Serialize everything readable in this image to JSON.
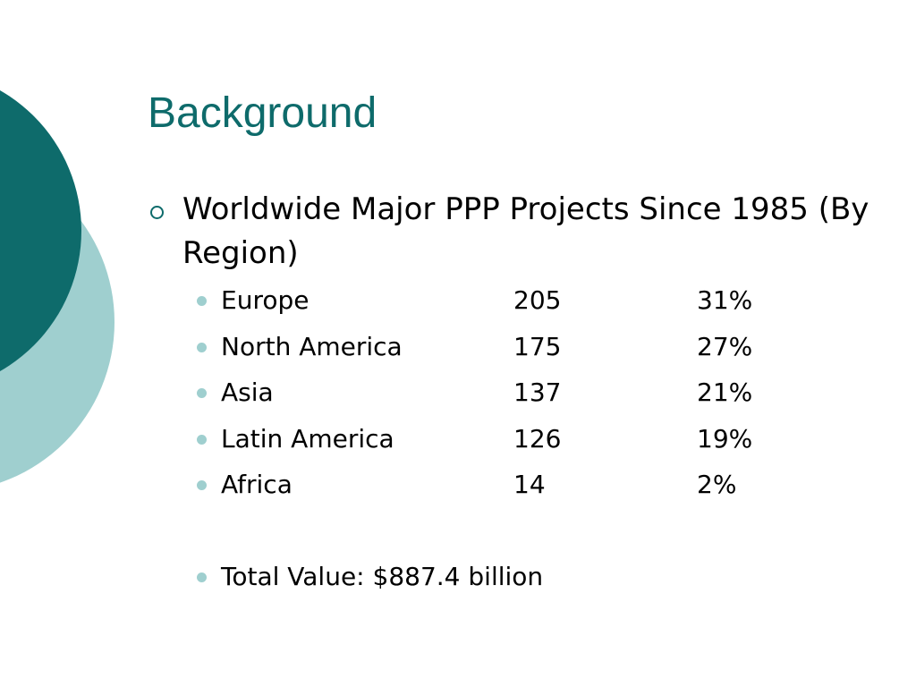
{
  "colors": {
    "accent_dark": "#0e6b6b",
    "accent_light": "#9fcfcf"
  },
  "slide": {
    "title": "Background",
    "heading": "Worldwide Major PPP Projects Since 1985 (By Region)",
    "rows": [
      {
        "region": "Europe",
        "projects": "205",
        "share": "31%"
      },
      {
        "region": "North America",
        "projects": "175",
        "share": "27%"
      },
      {
        "region": "Asia",
        "projects": "137",
        "share": "21%"
      },
      {
        "region": "Latin America",
        "projects": "126",
        "share": "19%"
      },
      {
        "region": "Africa",
        "projects": "14",
        "share": "2%"
      }
    ],
    "total": "Total Value: $887.4 billion"
  }
}
